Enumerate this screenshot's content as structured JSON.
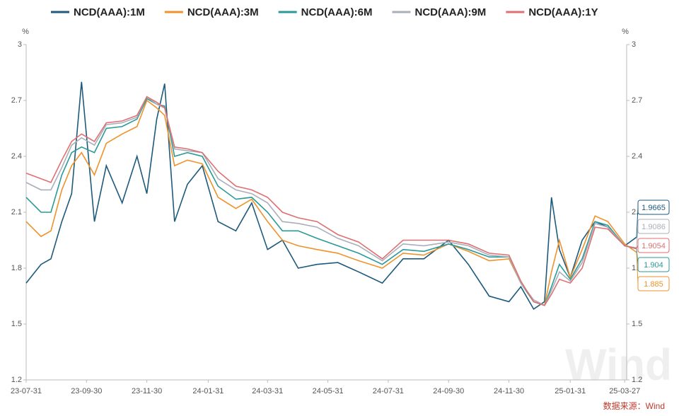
{
  "chart_data": {
    "type": "line",
    "legend_position": "top",
    "y_unit": "%",
    "source": "数据来源：Wind",
    "watermark": "Wind",
    "xlim": [
      "23-07-31",
      "25-04-08"
    ],
    "xticks": [
      "23-07-31",
      "23-09-30",
      "23-11-30",
      "24-01-31",
      "24-03-31",
      "24-05-31",
      "24-07-31",
      "24-09-30",
      "24-11-30",
      "25-01-31",
      "25-03-27"
    ],
    "ylim": [
      1.2,
      3
    ],
    "yticks": [
      1.2,
      1.5,
      1.8,
      2.1,
      2.4,
      2.7,
      3
    ],
    "x": [
      "23-07-31",
      "23-08-15",
      "23-08-25",
      "23-09-05",
      "23-09-15",
      "23-09-25",
      "23-10-08",
      "23-10-20",
      "23-11-05",
      "23-11-20",
      "23-11-30",
      "23-12-10",
      "23-12-18",
      "23-12-28",
      "24-01-10",
      "24-01-25",
      "24-02-10",
      "24-02-28",
      "24-03-15",
      "24-03-31",
      "24-04-15",
      "24-05-01",
      "24-05-20",
      "24-06-10",
      "24-07-01",
      "24-07-25",
      "24-08-15",
      "24-09-05",
      "24-09-30",
      "24-10-20",
      "24-11-10",
      "24-11-30",
      "24-12-12",
      "24-12-25",
      "25-01-05",
      "25-01-12",
      "25-01-20",
      "25-01-31",
      "25-02-12",
      "25-02-25",
      "25-03-10",
      "25-03-27",
      "25-04-08"
    ],
    "series": [
      {
        "name": "NCD(AAA):1M",
        "color": "#1d5a7c",
        "values": [
          1.72,
          1.82,
          1.85,
          2.05,
          2.2,
          2.8,
          2.05,
          2.35,
          2.15,
          2.4,
          2.2,
          2.6,
          2.79,
          2.05,
          2.25,
          2.35,
          2.05,
          2.0,
          2.15,
          1.9,
          1.95,
          1.8,
          1.82,
          1.83,
          1.78,
          1.72,
          1.85,
          1.85,
          1.95,
          1.82,
          1.65,
          1.62,
          1.7,
          1.58,
          1.62,
          2.18,
          1.9,
          1.75,
          1.95,
          2.05,
          2.02,
          1.92,
          1.9665
        ]
      },
      {
        "name": "NCD(AAA):3M",
        "color": "#f0922a",
        "values": [
          2.05,
          1.97,
          2.0,
          2.22,
          2.35,
          2.42,
          2.3,
          2.47,
          2.52,
          2.56,
          2.7,
          2.66,
          2.62,
          2.35,
          2.38,
          2.36,
          2.18,
          2.12,
          2.17,
          2.05,
          1.95,
          1.92,
          1.9,
          1.88,
          1.84,
          1.8,
          1.88,
          1.87,
          1.93,
          1.89,
          1.84,
          1.85,
          1.72,
          1.62,
          1.6,
          1.78,
          1.95,
          1.75,
          1.9,
          2.08,
          2.05,
          1.93,
          1.885
        ]
      },
      {
        "name": "NCD(AAA):6M",
        "color": "#2a9a98",
        "values": [
          2.18,
          2.1,
          2.1,
          2.3,
          2.42,
          2.45,
          2.42,
          2.55,
          2.56,
          2.6,
          2.71,
          2.68,
          2.67,
          2.4,
          2.42,
          2.4,
          2.24,
          2.17,
          2.18,
          2.1,
          2.0,
          2.0,
          1.96,
          1.92,
          1.88,
          1.82,
          1.9,
          1.89,
          1.93,
          1.9,
          1.86,
          1.86,
          1.72,
          1.62,
          1.6,
          1.7,
          1.82,
          1.74,
          1.85,
          2.05,
          2.03,
          1.92,
          1.904
        ]
      },
      {
        "name": "NCD(AAA):9M",
        "color": "#a9afba",
        "values": [
          2.26,
          2.22,
          2.22,
          2.34,
          2.46,
          2.5,
          2.46,
          2.57,
          2.58,
          2.61,
          2.72,
          2.68,
          2.66,
          2.44,
          2.43,
          2.42,
          2.28,
          2.22,
          2.2,
          2.15,
          2.05,
          2.04,
          2.02,
          1.96,
          1.92,
          1.84,
          1.93,
          1.92,
          1.94,
          1.92,
          1.87,
          1.86,
          1.72,
          1.63,
          1.6,
          1.68,
          1.78,
          1.73,
          1.83,
          2.04,
          2.02,
          1.92,
          1.9086
        ]
      },
      {
        "name": "NCD(AAA):1Y",
        "color": "#df6f70",
        "values": [
          2.31,
          2.28,
          2.26,
          2.38,
          2.48,
          2.52,
          2.48,
          2.58,
          2.59,
          2.62,
          2.72,
          2.69,
          2.66,
          2.45,
          2.44,
          2.42,
          2.32,
          2.24,
          2.22,
          2.18,
          2.1,
          2.07,
          2.05,
          1.98,
          1.94,
          1.85,
          1.95,
          1.95,
          1.95,
          1.93,
          1.88,
          1.87,
          1.73,
          1.62,
          1.6,
          1.66,
          1.74,
          1.72,
          1.8,
          2.02,
          2.01,
          1.92,
          1.9054
        ]
      }
    ]
  }
}
